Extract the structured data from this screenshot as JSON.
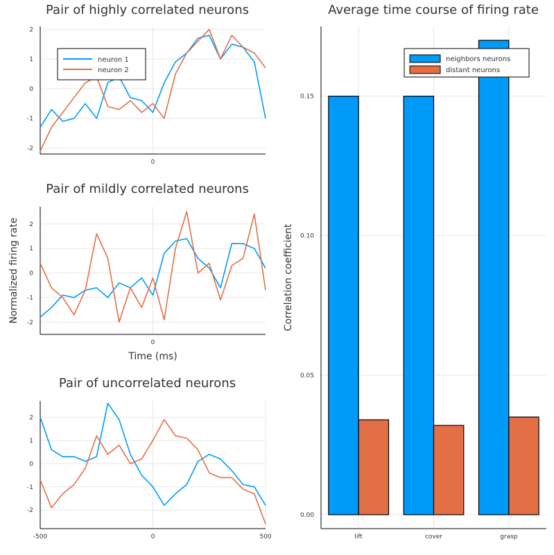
{
  "chart_data": [
    {
      "type": "line",
      "title": "Pair of highly correlated neurons",
      "xlim": [
        -500,
        500
      ],
      "ylim": [
        -2.2,
        2.1
      ],
      "x_ticks": [
        0
      ],
      "x_tick_labels": [
        "0"
      ],
      "y_ticks": [
        -2,
        -1,
        0,
        1,
        2
      ],
      "y_tick_labels": [
        "-2",
        "-1",
        "0",
        "1",
        "2"
      ],
      "grid": true,
      "legend": "top-left",
      "series": [
        {
          "name": "neuron 1",
          "color": "#009AF9",
          "x": [
            -500,
            -450,
            -400,
            -350,
            -300,
            -250,
            -200,
            -150,
            -100,
            -50,
            0,
            50,
            100,
            150,
            200,
            250,
            300,
            350,
            400,
            450,
            500
          ],
          "y": [
            -1.3,
            -0.7,
            -1.1,
            -1.0,
            -0.5,
            -1.0,
            0.2,
            0.4,
            -0.3,
            -0.4,
            -0.8,
            0.2,
            0.9,
            1.2,
            1.7,
            1.8,
            1.0,
            1.5,
            1.4,
            0.9,
            -1.0
          ]
        },
        {
          "name": "neuron 2",
          "color": "#E26F46",
          "x": [
            -500,
            -450,
            -400,
            -350,
            -300,
            -250,
            -200,
            -150,
            -100,
            -50,
            0,
            50,
            100,
            150,
            200,
            250,
            300,
            350,
            400,
            450,
            500
          ],
          "y": [
            -2.1,
            -1.3,
            -0.8,
            -0.3,
            0.2,
            0.4,
            -0.6,
            -0.7,
            -0.4,
            -0.8,
            -0.5,
            -1.0,
            0.5,
            1.2,
            1.6,
            2.0,
            1.0,
            1.8,
            1.4,
            1.2,
            0.7
          ]
        }
      ]
    },
    {
      "type": "line",
      "title": "Pair of mildly correlated neurons",
      "xlabel": "Time (ms)",
      "ylabel": "Normalized firing rate",
      "xlim": [
        -500,
        500
      ],
      "ylim": [
        -2.5,
        2.7
      ],
      "x_ticks": [
        0
      ],
      "x_tick_labels": [
        "0"
      ],
      "y_ticks": [
        -2,
        -1,
        0,
        1,
        2
      ],
      "y_tick_labels": [
        "-2",
        "-1",
        "0",
        "1",
        "2"
      ],
      "grid": true,
      "series": [
        {
          "color": "#009AF9",
          "x": [
            -500,
            -450,
            -400,
            -350,
            -300,
            -250,
            -200,
            -150,
            -100,
            -50,
            0,
            50,
            100,
            150,
            200,
            250,
            300,
            350,
            400,
            450,
            500
          ],
          "y": [
            -1.8,
            -1.4,
            -0.9,
            -1.0,
            -0.7,
            -0.6,
            -1.0,
            -0.4,
            -0.6,
            -0.2,
            -0.9,
            0.8,
            1.3,
            1.4,
            0.6,
            0.2,
            -0.6,
            1.2,
            1.2,
            1.0,
            0.2
          ]
        },
        {
          "color": "#E26F46",
          "x": [
            -500,
            -450,
            -400,
            -350,
            -300,
            -250,
            -200,
            -150,
            -100,
            -50,
            0,
            50,
            100,
            150,
            200,
            250,
            300,
            350,
            400,
            450,
            500
          ],
          "y": [
            0.4,
            -0.6,
            -1.0,
            -1.7,
            -0.7,
            1.6,
            0.6,
            -2.0,
            -0.6,
            -1.4,
            -0.2,
            -1.9,
            1.0,
            2.5,
            0.0,
            0.4,
            -1.1,
            0.3,
            0.6,
            2.4,
            -0.7
          ]
        }
      ]
    },
    {
      "type": "line",
      "title": "Pair of uncorrelated neurons",
      "xlim": [
        -500,
        500
      ],
      "ylim": [
        -2.8,
        2.7
      ],
      "x_ticks": [
        -500,
        0,
        500
      ],
      "x_tick_labels": [
        "-500",
        "0",
        "500"
      ],
      "y_ticks": [
        -2,
        -1,
        0,
        1,
        2
      ],
      "y_tick_labels": [
        "-2",
        "-1",
        "0",
        "1",
        "2"
      ],
      "grid": true,
      "series": [
        {
          "color": "#009AF9",
          "x": [
            -500,
            -450,
            -400,
            -350,
            -300,
            -250,
            -200,
            -150,
            -100,
            -50,
            0,
            50,
            100,
            150,
            200,
            250,
            300,
            350,
            400,
            450,
            500
          ],
          "y": [
            2.0,
            0.6,
            0.3,
            0.3,
            0.1,
            0.3,
            2.6,
            1.9,
            0.4,
            -0.5,
            -1.0,
            -1.8,
            -1.3,
            -0.9,
            0.1,
            0.4,
            0.2,
            -0.3,
            -0.9,
            -1.0,
            -1.8
          ]
        },
        {
          "color": "#E26F46",
          "x": [
            -500,
            -450,
            -400,
            -350,
            -300,
            -250,
            -200,
            -150,
            -100,
            -50,
            0,
            50,
            100,
            150,
            200,
            250,
            300,
            350,
            400,
            450,
            500
          ],
          "y": [
            -0.7,
            -1.9,
            -1.3,
            -0.9,
            -0.2,
            1.2,
            0.4,
            0.8,
            0.0,
            0.2,
            1.0,
            1.9,
            1.2,
            1.1,
            0.6,
            -0.4,
            -0.6,
            -0.6,
            -1.1,
            -1.3,
            -2.6
          ]
        }
      ]
    },
    {
      "type": "bar",
      "title": "Average time course of firing rate",
      "ylabel": "Correlation coefficient",
      "categories": [
        "lift",
        "cover",
        "grasp"
      ],
      "ylim": [
        -0.005,
        0.175
      ],
      "y_ticks": [
        0.0,
        0.05,
        0.1,
        0.15
      ],
      "y_tick_labels": [
        "0.00",
        "0.05",
        "0.10",
        "0.15"
      ],
      "grid": true,
      "legend": "top-right",
      "series": [
        {
          "name": "neighbors neurons",
          "color": "#009AF9",
          "values": [
            0.15,
            0.15,
            0.17
          ]
        },
        {
          "name": "distant neurons",
          "color": "#E26F46",
          "values": [
            0.034,
            0.032,
            0.035
          ]
        }
      ]
    }
  ]
}
